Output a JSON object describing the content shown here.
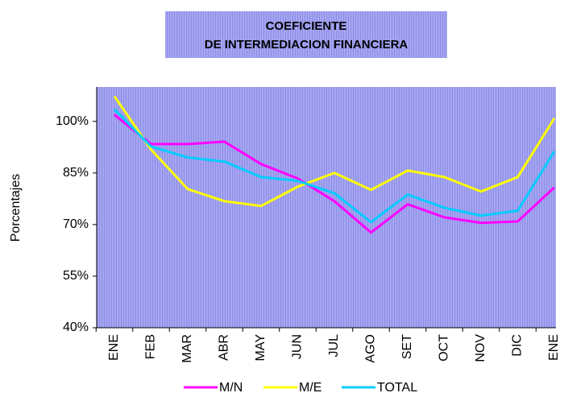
{
  "chart_data": {
    "type": "line",
    "title": [
      "COEFICIENTE",
      "DE INTERMEDIACION FINANCIERA"
    ],
    "ylabel": "Porcentajes",
    "categories": [
      "ENE",
      "FEB",
      "MAR",
      "ABR",
      "MAY",
      "JUN",
      "JUL",
      "AGO",
      "SET",
      "OCT",
      "NOV",
      "DIC",
      "ENE"
    ],
    "series": [
      {
        "name": "M/N",
        "color": "#ff00ff",
        "values": [
          101.9,
          93.4,
          93.4,
          94.1,
          87.6,
          83.4,
          76.8,
          67.7,
          75.9,
          72.1,
          70.5,
          70.9,
          80.8
        ]
      },
      {
        "name": "M/E",
        "color": "#ffff00",
        "values": [
          107.3,
          91.8,
          80.3,
          76.8,
          75.4,
          81.0,
          85.0,
          80.1,
          85.7,
          83.8,
          79.6,
          83.8,
          100.9
        ]
      },
      {
        "name": "TOTAL",
        "color": "#00ccff",
        "values": [
          103.5,
          92.7,
          89.5,
          88.3,
          83.8,
          82.7,
          79.1,
          70.7,
          78.7,
          74.9,
          72.6,
          74.0,
          91.3
        ]
      }
    ],
    "ylim": [
      40,
      110
    ],
    "yticks": [
      {
        "value": 40,
        "label": "40%"
      },
      {
        "value": 55,
        "label": "55%"
      },
      {
        "value": 70,
        "label": "70%"
      },
      {
        "value": 85,
        "label": "85%"
      },
      {
        "value": 100,
        "label": "100%"
      }
    ],
    "grid": false,
    "legend": "bottom"
  }
}
